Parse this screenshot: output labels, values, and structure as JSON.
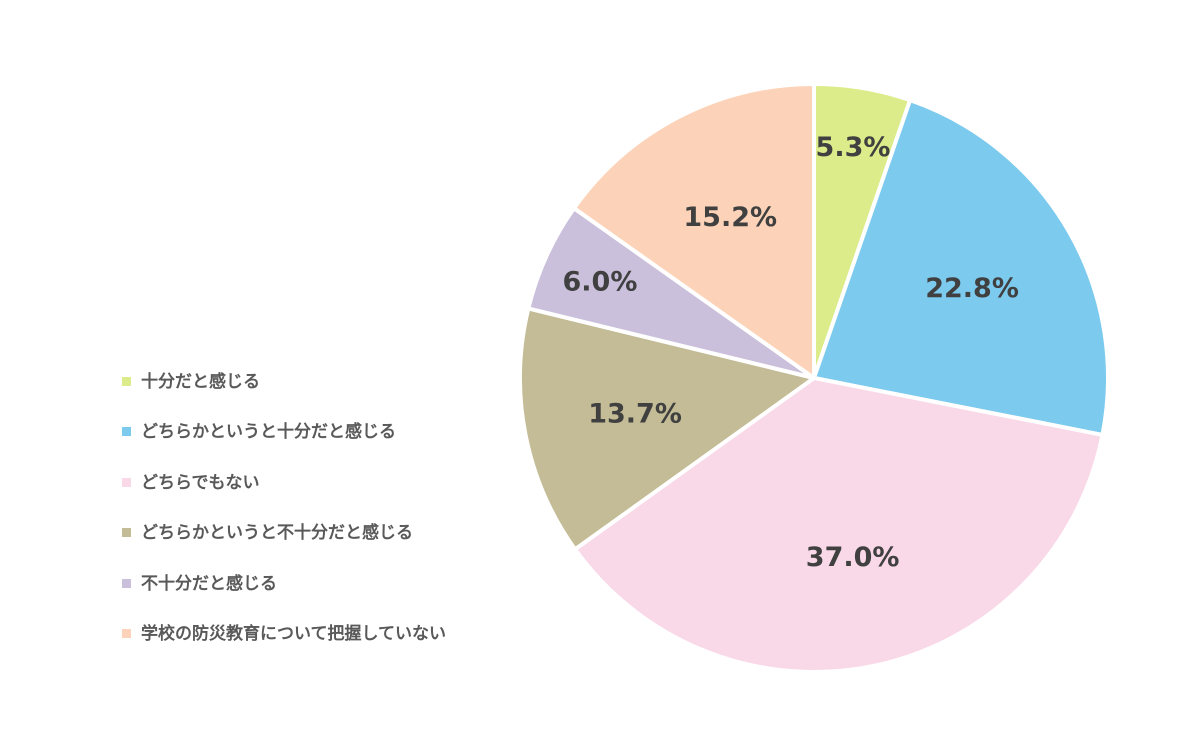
{
  "chart_data": {
    "type": "pie",
    "start": "top",
    "direction": "clockwise",
    "legend_position": "left",
    "slices": [
      {
        "label": "十分だと感じる",
        "value": 5.3,
        "display": "5.3%",
        "color": "#dcec8a"
      },
      {
        "label": "どちらかというと十分だと感じる",
        "value": 22.8,
        "display": "22.8%",
        "color": "#7ccaee"
      },
      {
        "label": "どちらでもない",
        "value": 37.0,
        "display": "37.0%",
        "color": "#f9d8e8"
      },
      {
        "label": "どちらかというと不十分だと感じる",
        "value": 13.7,
        "display": "13.7%",
        "color": "#c4bc96"
      },
      {
        "label": "不十分だと感じる",
        "value": 6.0,
        "display": "6.0%",
        "color": "#cbc0dc"
      },
      {
        "label": "学校の防災教育について把握していない",
        "value": 15.2,
        "display": "15.2%",
        "color": "#fcd3b8"
      }
    ]
  }
}
